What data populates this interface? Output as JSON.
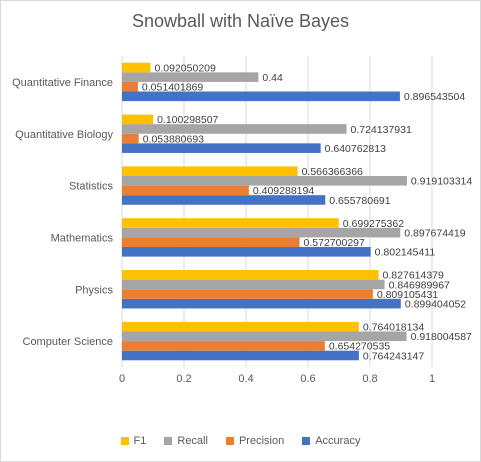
{
  "chart_data": {
    "type": "bar",
    "orientation": "horizontal",
    "title": "Snowball with Naïve Bayes",
    "xlabel": "",
    "ylabel": "",
    "xlim": [
      0,
      1
    ],
    "x_ticks": [
      "0",
      "0.2",
      "0.4",
      "0.6",
      "0.8",
      "1"
    ],
    "grid": true,
    "legend_position": "bottom",
    "categories": [
      "Computer Science",
      "Physics",
      "Mathematics",
      "Statistics",
      "Quantitative Biology",
      "Quantitative Finance"
    ],
    "series": [
      {
        "name": "Accuracy",
        "color": "#4472c4",
        "values": [
          0.764243147,
          0.899404052,
          0.802145411,
          0.655780691,
          0.640762813,
          0.896543504
        ],
        "labels": [
          "0.764243147",
          "0.899404052",
          "0.802145411",
          "0.655780691",
          "0.640762813",
          "0.896543504"
        ]
      },
      {
        "name": "Precision",
        "color": "#ed7d31",
        "values": [
          0.654270535,
          0.809105431,
          0.572700297,
          0.409288194,
          0.053880693,
          0.051401869
        ],
        "labels": [
          "0.654270535",
          "0.809105431",
          "0.572700297",
          "0.409288194",
          "0.053880693",
          "0.051401869"
        ]
      },
      {
        "name": "Recall",
        "color": "#a5a5a5",
        "values": [
          0.918004587,
          0.846989967,
          0.897674419,
          0.919103314,
          0.724137931,
          0.44
        ],
        "labels": [
          "0.918004587",
          "0.846989967",
          "0.897674419",
          "0.919103314",
          "0.724137931",
          "0.44"
        ]
      },
      {
        "name": "F1",
        "color": "#ffc000",
        "values": [
          0.764018134,
          0.827614379,
          0.699275362,
          0.566366366,
          0.100298507,
          0.092050209
        ],
        "labels": [
          "0.764018134",
          "0.827614379",
          "0.699275362",
          "0.566366366",
          "0.100298507",
          "0.092050209"
        ]
      }
    ],
    "legend_order": [
      "F1",
      "Recall",
      "Precision",
      "Accuracy"
    ]
  }
}
